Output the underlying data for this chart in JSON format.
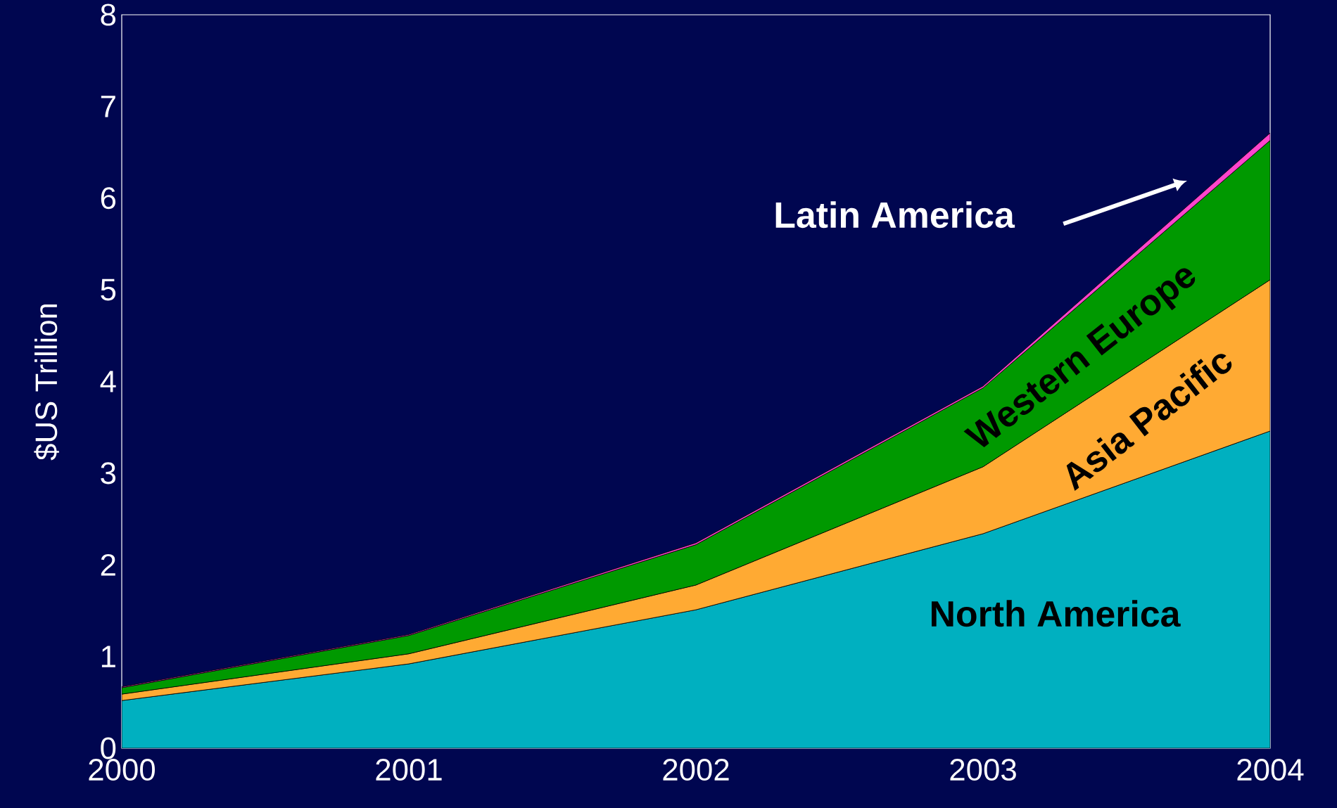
{
  "chart_data": {
    "type": "area",
    "stacked": true,
    "ylabel": "$US Trillion",
    "x": [
      2000,
      2001,
      2002,
      2003,
      2004
    ],
    "xlim": [
      2000,
      2004
    ],
    "xticks": [
      2000,
      2001,
      2002,
      2003,
      2004
    ],
    "ylim": [
      0,
      8
    ],
    "yticks": [
      0,
      1,
      2,
      3,
      4,
      5,
      6,
      7,
      8
    ],
    "legend": false,
    "grid": false,
    "series": [
      {
        "name": "North America",
        "color": "#00b0c0",
        "values": [
          0.52,
          0.92,
          1.51,
          2.34,
          3.46
        ]
      },
      {
        "name": "Asia Pacific",
        "color": "#ffaa33",
        "values": [
          0.07,
          0.11,
          0.27,
          0.73,
          1.65
        ]
      },
      {
        "name": "Western Europe",
        "color": "#009900",
        "values": [
          0.07,
          0.2,
          0.44,
          0.86,
          1.52
        ]
      },
      {
        "name": "Latin America",
        "color": "#ff44cc",
        "values": [
          0.01,
          0.01,
          0.02,
          0.02,
          0.08
        ]
      }
    ]
  }
}
